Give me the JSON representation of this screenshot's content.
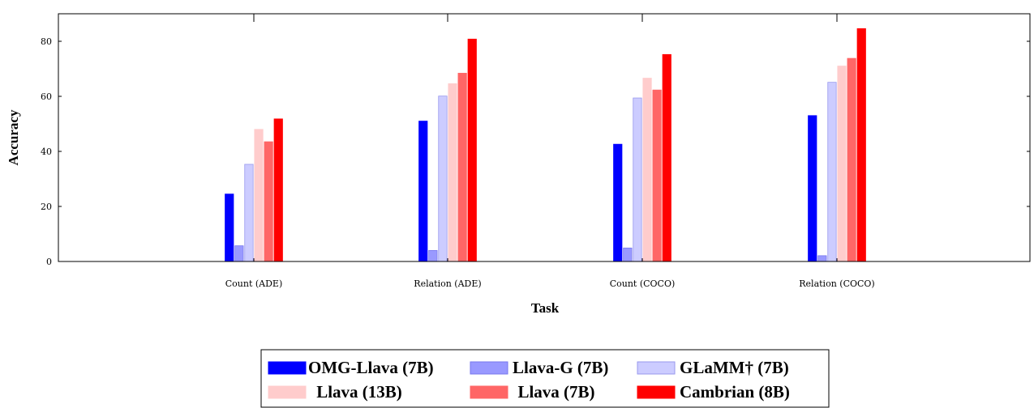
{
  "chart_data": {
    "type": "bar",
    "xlabel": "Task",
    "ylabel": "Accuracy",
    "ylim": [
      0,
      90
    ],
    "yticks": [
      0,
      20,
      40,
      60,
      80
    ],
    "categories": [
      "Count (ADE)",
      "Relation (ADE)",
      "Count (COCO)",
      "Relation (COCO)"
    ],
    "series": [
      {
        "name": "OMG-Llava (7B)",
        "color": "#0000ff",
        "stroke": "#0000ff",
        "values": [
          24.5,
          51.0,
          42.6,
          53.0
        ]
      },
      {
        "name": "Llava-G (7B)",
        "color": "#9999ff",
        "stroke": "#7777ee",
        "values": [
          5.7,
          4.0,
          4.9,
          2.1
        ]
      },
      {
        "name": "GLaMM† (7B)",
        "color": "#ccccff",
        "stroke": "#9999ee",
        "values": [
          35.3,
          60.1,
          59.4,
          65.1
        ]
      },
      {
        "name": "Llava (13B)",
        "color": "#ffcccc",
        "stroke": "#ffcccc",
        "values": [
          48.0,
          64.6,
          66.6,
          71.0
        ]
      },
      {
        "name": "Llava (7B)",
        "color": "#ff6666",
        "stroke": "#ff6666",
        "values": [
          43.5,
          68.4,
          62.3,
          73.8
        ]
      },
      {
        "name": "Cambrian (8B)",
        "color": "#ff0000",
        "stroke": "#ff0000",
        "values": [
          51.8,
          80.8,
          75.2,
          84.6
        ]
      }
    ],
    "grid": false,
    "legend_position": "bottom-center"
  }
}
